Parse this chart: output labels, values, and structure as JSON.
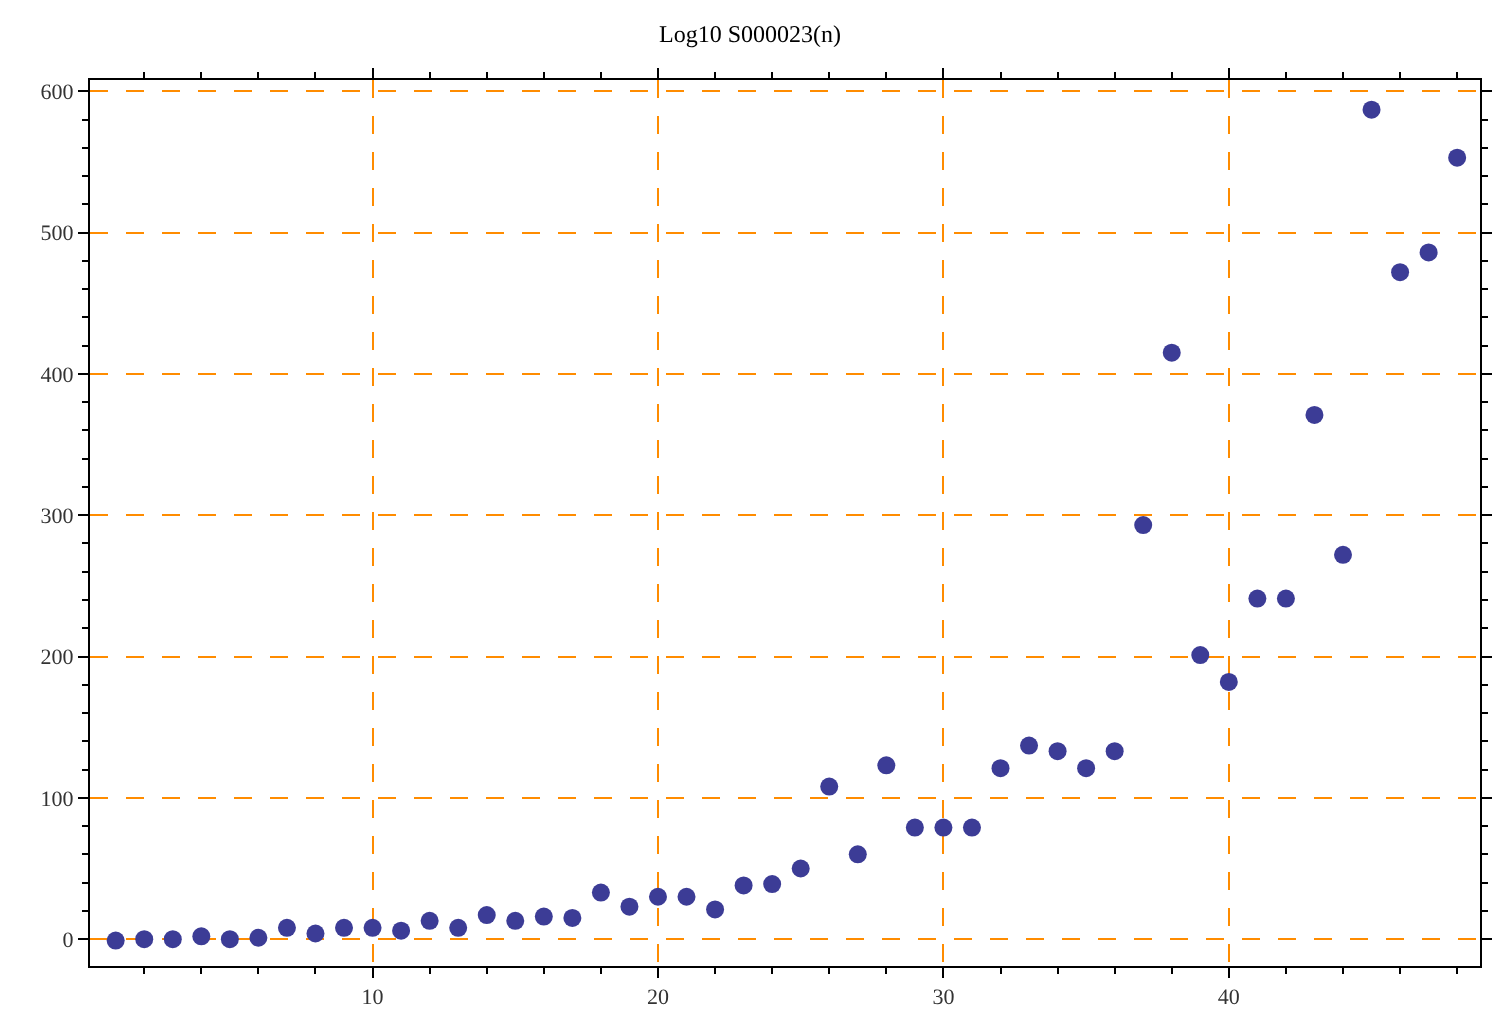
{
  "chart_data": {
    "type": "scatter",
    "title": "Log10 S000023(n)",
    "x": [
      1,
      2,
      3,
      4,
      5,
      6,
      7,
      8,
      9,
      10,
      11,
      12,
      13,
      14,
      15,
      16,
      17,
      18,
      19,
      20,
      21,
      22,
      23,
      24,
      25,
      26,
      27,
      28,
      29,
      30,
      31,
      32,
      33,
      34,
      35,
      36,
      37,
      38,
      39,
      40,
      41,
      42,
      43,
      44,
      45,
      46,
      47,
      48
    ],
    "series": [
      {
        "color": "#3c3c96",
        "values": [
          -1,
          0,
          0,
          2,
          0,
          1,
          8,
          4,
          8,
          8,
          6,
          13,
          8,
          17,
          13,
          16,
          15,
          33,
          23,
          30,
          30,
          21,
          38,
          39,
          50,
          108,
          60,
          123,
          79,
          79,
          79,
          121,
          137,
          133,
          121,
          133,
          293,
          415,
          201,
          182,
          241,
          241,
          371,
          272,
          587,
          472,
          486,
          553
        ]
      }
    ],
    "xlim": [
      0.1,
      48.8
    ],
    "ylim": [
      -19,
      608
    ],
    "xticks": [
      10,
      20,
      30,
      40
    ],
    "yticks": [
      0,
      100,
      200,
      300,
      400,
      500,
      600
    ],
    "grid": true,
    "marker": "circle",
    "legend": false
  }
}
